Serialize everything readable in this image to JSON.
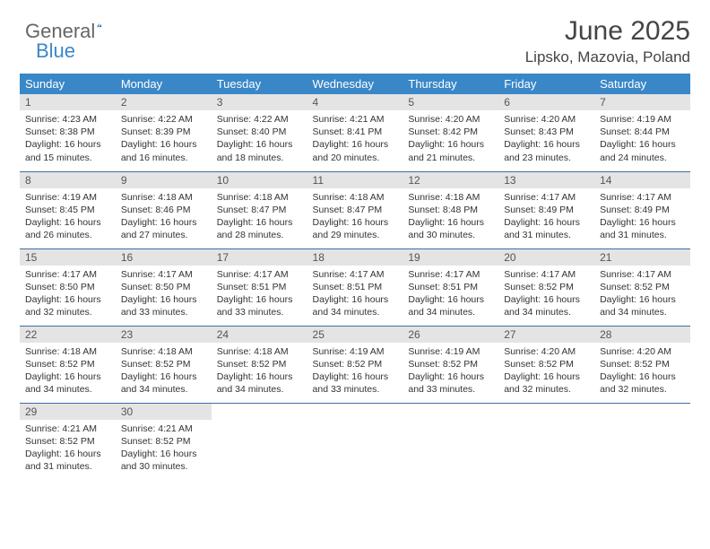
{
  "logo": {
    "text1": "General",
    "text2": "Blue"
  },
  "title": "June 2025",
  "location": "Lipsko, Mazovia, Poland",
  "colors": {
    "header_bg": "#3a87c8",
    "header_text": "#ffffff",
    "daynum_bg": "#e4e4e4",
    "border": "#3a6fa5",
    "body_bg": "#ffffff",
    "text": "#333333"
  },
  "weekdays": [
    "Sunday",
    "Monday",
    "Tuesday",
    "Wednesday",
    "Thursday",
    "Friday",
    "Saturday"
  ],
  "days": [
    {
      "n": "1",
      "sr": "4:23 AM",
      "ss": "8:38 PM",
      "dl": "16 hours and 15 minutes."
    },
    {
      "n": "2",
      "sr": "4:22 AM",
      "ss": "8:39 PM",
      "dl": "16 hours and 16 minutes."
    },
    {
      "n": "3",
      "sr": "4:22 AM",
      "ss": "8:40 PM",
      "dl": "16 hours and 18 minutes."
    },
    {
      "n": "4",
      "sr": "4:21 AM",
      "ss": "8:41 PM",
      "dl": "16 hours and 20 minutes."
    },
    {
      "n": "5",
      "sr": "4:20 AM",
      "ss": "8:42 PM",
      "dl": "16 hours and 21 minutes."
    },
    {
      "n": "6",
      "sr": "4:20 AM",
      "ss": "8:43 PM",
      "dl": "16 hours and 23 minutes."
    },
    {
      "n": "7",
      "sr": "4:19 AM",
      "ss": "8:44 PM",
      "dl": "16 hours and 24 minutes."
    },
    {
      "n": "8",
      "sr": "4:19 AM",
      "ss": "8:45 PM",
      "dl": "16 hours and 26 minutes."
    },
    {
      "n": "9",
      "sr": "4:18 AM",
      "ss": "8:46 PM",
      "dl": "16 hours and 27 minutes."
    },
    {
      "n": "10",
      "sr": "4:18 AM",
      "ss": "8:47 PM",
      "dl": "16 hours and 28 minutes."
    },
    {
      "n": "11",
      "sr": "4:18 AM",
      "ss": "8:47 PM",
      "dl": "16 hours and 29 minutes."
    },
    {
      "n": "12",
      "sr": "4:18 AM",
      "ss": "8:48 PM",
      "dl": "16 hours and 30 minutes."
    },
    {
      "n": "13",
      "sr": "4:17 AM",
      "ss": "8:49 PM",
      "dl": "16 hours and 31 minutes."
    },
    {
      "n": "14",
      "sr": "4:17 AM",
      "ss": "8:49 PM",
      "dl": "16 hours and 31 minutes."
    },
    {
      "n": "15",
      "sr": "4:17 AM",
      "ss": "8:50 PM",
      "dl": "16 hours and 32 minutes."
    },
    {
      "n": "16",
      "sr": "4:17 AM",
      "ss": "8:50 PM",
      "dl": "16 hours and 33 minutes."
    },
    {
      "n": "17",
      "sr": "4:17 AM",
      "ss": "8:51 PM",
      "dl": "16 hours and 33 minutes."
    },
    {
      "n": "18",
      "sr": "4:17 AM",
      "ss": "8:51 PM",
      "dl": "16 hours and 34 minutes."
    },
    {
      "n": "19",
      "sr": "4:17 AM",
      "ss": "8:51 PM",
      "dl": "16 hours and 34 minutes."
    },
    {
      "n": "20",
      "sr": "4:17 AM",
      "ss": "8:52 PM",
      "dl": "16 hours and 34 minutes."
    },
    {
      "n": "21",
      "sr": "4:17 AM",
      "ss": "8:52 PM",
      "dl": "16 hours and 34 minutes."
    },
    {
      "n": "22",
      "sr": "4:18 AM",
      "ss": "8:52 PM",
      "dl": "16 hours and 34 minutes."
    },
    {
      "n": "23",
      "sr": "4:18 AM",
      "ss": "8:52 PM",
      "dl": "16 hours and 34 minutes."
    },
    {
      "n": "24",
      "sr": "4:18 AM",
      "ss": "8:52 PM",
      "dl": "16 hours and 34 minutes."
    },
    {
      "n": "25",
      "sr": "4:19 AM",
      "ss": "8:52 PM",
      "dl": "16 hours and 33 minutes."
    },
    {
      "n": "26",
      "sr": "4:19 AM",
      "ss": "8:52 PM",
      "dl": "16 hours and 33 minutes."
    },
    {
      "n": "27",
      "sr": "4:20 AM",
      "ss": "8:52 PM",
      "dl": "16 hours and 32 minutes."
    },
    {
      "n": "28",
      "sr": "4:20 AM",
      "ss": "8:52 PM",
      "dl": "16 hours and 32 minutes."
    },
    {
      "n": "29",
      "sr": "4:21 AM",
      "ss": "8:52 PM",
      "dl": "16 hours and 31 minutes."
    },
    {
      "n": "30",
      "sr": "4:21 AM",
      "ss": "8:52 PM",
      "dl": "16 hours and 30 minutes."
    }
  ],
  "labels": {
    "sunrise": "Sunrise:",
    "sunset": "Sunset:",
    "daylight": "Daylight:"
  }
}
